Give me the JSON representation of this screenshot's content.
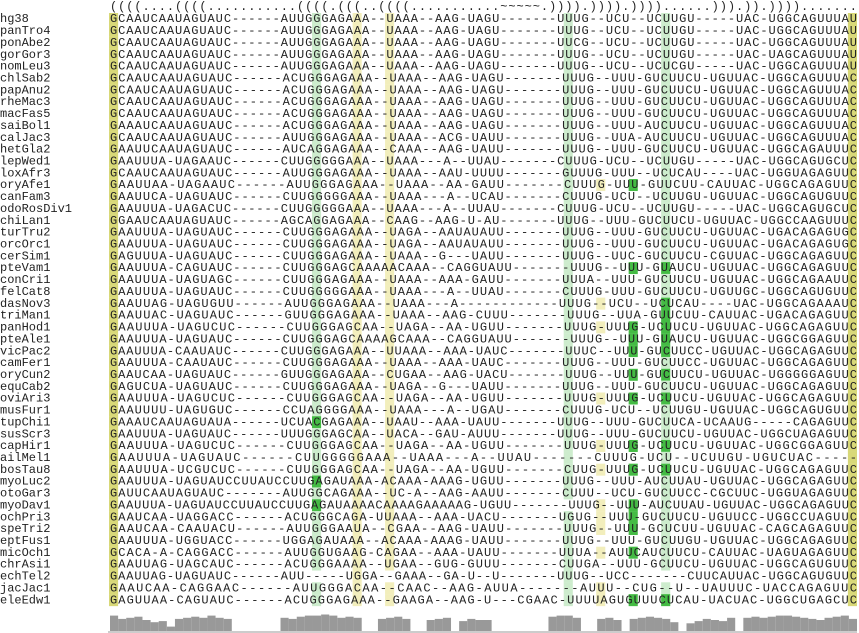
{
  "structure": "((((....((((...........((((.(((..((((...........~~~~~.)))).)))).))))......))).)).)))).......",
  "rows": [
    {
      "name": "hg38",
      "seq": "GCAAUCAAUAGUAUC------AUUGGGAGAAA--UAAA--AAG-UAGU-------UUUG--UCU--UCUUGU-----UAC-UGGCAGUUUAU"
    },
    {
      "name": "panTro4",
      "seq": "GCAAUCAAUAGUAUC------AUUGGGAGAAA--UAAA--AAG-UAGU-------UUUG--UCU--UCUUGU-----UAC-UGGCAGUUUAU"
    },
    {
      "name": "ponAbe2",
      "seq": "GCAAUCAAUAGUAUC------AUUGGGAGAAA--UAAA--AAG-UAGU-------UUCG--UCU--UCUUGU-----UAC-UGGCAGUUUAU"
    },
    {
      "name": "gorGor3",
      "seq": "GCAAUCAAUAGUAUC------AUUGGGAGAAA--UAAA--AAG-UAGU-------UUUG--UCU--UCUUGU-----UAC-UAGCAGUUUAU"
    },
    {
      "name": "nomLeu3",
      "seq": "GCAAUCAAUAGUAUC------AUUGGGAGAAA--UAAA--AAG-UAGU-------UUUG--UCU--UCUCGU-----UAC-UGGCAGUUUAU"
    },
    {
      "name": "chlSab2",
      "seq": "GCAAUCAAUAGUAUC------ACUGGGAGAAA--UAAA--AAG-UAGU-------UUUG--UUU-GUCUUCU-UGUUAC-UGGCAGUUUAC"
    },
    {
      "name": "papAnu2",
      "seq": "GCAAUCAAUAGUAUC------ACUGGGAGAAA--UAAA--AAG-UAGU-------UUUG--UUU-GUCUUCU-UGUUAC-UGGCAGUUUAC"
    },
    {
      "name": "rheMac3",
      "seq": "GCAAUCAAUAGUAUC------ACUGGGAGAAA--UAAA--AAG-UAGU-------UUUG--UUU-GUCUUCU-UGUUAC-UGGCAGUUUAC"
    },
    {
      "name": "macFas5",
      "seq": "GCAAUCAAUAGUAUC------ACUGGGAGAAA--UAAA--AAG-UAGU-------UUUG--UUU-GUCUUCU-UGUUAC-UGGCAGUUUAC"
    },
    {
      "name": "saiBol1",
      "seq": "GAAAUCAAUAGUAUC------ACUGGGAGAAA--UAAA--AAG-UAGU-------UUUG--UUU-AUCUUCU-UGUUAC-UGGCAGUUUAC"
    },
    {
      "name": "calJac3",
      "seq": "GCAAUCAAUAGUAUC------AUUGGGAGAAA--UAAA--ACG-UAUU-------UUUG--UUA-AUCUUCU-UGUUAC-UGGCAGUUUAC"
    },
    {
      "name": "hetGla2",
      "seq": "GAAUUCAAUAGUAUC------AUCAGGAGAAA--CAAA--AAG-UAUU-------UUUG--UUU-GUCUUCU-UGUUAC-UGGCAGAUUUC"
    },
    {
      "name": "lepWed1",
      "seq": "GAAUUUA-UAGAAUC------CUUGGGGGAAA--UAAA---A--UUAU-------CUUUG-UCU--UCUUGU-----UAC-UGGCAGUGCUC"
    },
    {
      "name": "loxAfr3",
      "seq": "GCAAUCAAUAGUAUC------AUUGGGAGAAA--UAAA--AAU-UUUU-------GUUUG-UUU--UCUCAU----UAC-UGGUAGAGUUC"
    },
    {
      "name": "oryAfe1",
      "seq": "GAAUUAA-UAGAAUC------AUUGGGAGAAA--UAAA--AA-GAUU-------CUUUG-UUU-GUUCUU-CAUUAC-UGGCAGAGUUC"
    },
    {
      "name": "canFam3",
      "seq": "GAAUUCA-UAGUAUC------CUUGGGGGAAA--UAAA---A--UCAU-------CUUUG-UCU--UCUUGU-UGUUAC-UGGCAGUGUUC"
    },
    {
      "name": "odoRosDiv1",
      "seq": "GAAUUUA-UAGACUC------CUUGGGGGAAA--UAAA---A--UUAU-------CUUUG-UCU--UCUUGU-----UAC-UGGCAGUGCUC"
    },
    {
      "name": "chiLan1",
      "seq": "GGAAUCAAUAGUAUC------AGCAGGAGAAA--CAAG--AAG-U-AU-------UUUG--UUU-GUCUUCU-UGUUAC-UGGCCAAGUUUC"
    },
    {
      "name": "turTru2",
      "seq": "GAAUUUA-UAGUAUC------CUUGGGAGAAA--UAGA--AAUAUAUU-------UUUG--UUU-GUCUUCU-UGUUAC-UGACAGAGUGC"
    },
    {
      "name": "orcOrc1",
      "seq": "GAAUUUA-UAGUAUC------CUUGGGAGAAA--UAGA--AAUAUAUU-------UUUG--UUU-GUCUUCU-UGUUAC-UGACAGAGUGC"
    },
    {
      "name": "cerSim1",
      "seq": "GAGUUUA-UAGUAUC------CUUGGGAGAAA--UAAA--G---UAUU-------UUUG--UUC-GUCUUCU-CGUUAC-UGGCAGAGUUC"
    },
    {
      "name": "pteVam1",
      "seq": "GAAUUUA-CAGUAUC------CUUGGGAGCAAAAACAAA--CAGGUAUU-------UUUG--UUU-GUAUCU-UGUUAC-UGGCAGAGUUC"
    },
    {
      "name": "conCri1",
      "seq": "GAAUUUA-UAGUAGC------CUUGGGAGAAA--UAAA--AAA-GAUU-------UUUA--UUU-GUCUUCU-UGUUAC-UGGCAGAAUUC"
    },
    {
      "name": "felCat8",
      "seq": "GAAUUUA-UAGUAUC------CUUGGGGGAAA--UAAA---A--UUAU-------CUUUG-UUU-GUCUUCU-UGUUGC-UGGCAGUGUUC"
    },
    {
      "name": "dasNov3",
      "seq": "GAAUUAG-UAGUGUU------AUUGGGAGAAA--UAAA---A------------UUUG--UCU--UCUCAU----UAC-UGGCAGAAAUC"
    },
    {
      "name": "triMan1",
      "seq": "GAAUUAC-UAGUAUC------GUUGGGAGAAA--UAAA--AAG-CUUU-------UUUG--UUA-GUUCUU-CAUUAC-UGACAGAGUUC"
    },
    {
      "name": "panHod1",
      "seq": "GAAUUUA-UAGUCUC------CUUGGGAGCAA--UAGA--AA-UGUU-------UUUG-UUUG-UCUUCU-UGUUAC-UGGCAGAGUUC"
    },
    {
      "name": "pteAle1",
      "seq": "GAAUUUA-UAGUAUC------CUUGGGAGCAAAAGCAAA--CAGGUAUU-------UUUG--UUU-GUAUCU-UGUUAC-UGGCGGAGUUC"
    },
    {
      "name": "vicPac2",
      "seq": "GAAUUUA-CAAUAUC------CUUGGGAGAAA--UUAAA--AAA-UAUC-------UUUC--UUU-GUCUUCC-UGUUAC-UGGCAGAGUUC"
    },
    {
      "name": "camFer1",
      "seq": "GAAUUUA-CAAUAUC------CUUGGGAGAAA--UAAA--AAA-UAUC-------UUUG--UUU-GUCUUCC-UGUUAC-UGGCAGAGUUC"
    },
    {
      "name": "oryCun2",
      "seq": "GAAUCAA-UAGUAUC------GUUGGGAGAAA--CUGAA--AAG-UACU-------UUUG--UUU-GUCUUCU-UGUUAC-UGGGGGAGUUC"
    },
    {
      "name": "equCab2",
      "seq": "GAGUCUA-UAGUAUC------CUUGGGAGAAA--UAGA--G---UAUU-------UUUG--UUU-GUCUUCU-UGUUAC-UGGCAGAGUUC"
    },
    {
      "name": "oviAri3",
      "seq": "GAAUUUA-UAGUCUC------CUUGGGAGCAA--UAGA--AA-UGUU-------UUUG-UUUG-UCUUCU-UGUUAC-UGGCAGAGUUC"
    },
    {
      "name": "musFur1",
      "seq": "GAAUUUU-UAGUGUC------CCUAGGGGAAA--UAAA---A--UGAU-------CUUUG-UCU--UCUUGU-UGUUAC-UGGCAGUGUUC"
    },
    {
      "name": "tupChi1",
      "seq": "GAAAUCAAUAGUAUA------UCUACGAGAAA--UAAU--AAA-UAUU-------UUUG--UUU-GUCUUCA-UCAAUG-----CAGAGUUC"
    },
    {
      "name": "susScr3",
      "seq": "GAAUUUA-UAGUAUC------UUUGGGAGCAA--UACA--GAU-AUUU-------UUUG--UUU-GUCUUCU-UGUUAC-UGGCUAGAGUUC"
    },
    {
      "name": "capHir1",
      "seq": "GAAUUUA-UAGUCUC------CUUGGGAGCAA--UAGA--AA-UGUU-------UUUG-UUUG-UCUUCU-UGUUAC-UGGCGGAGUUC"
    },
    {
      "name": "ailMel1",
      "seq": "GAAUUUA-UAGUAUC------CUUGGGGGAAA--UAAA---A--UUAU-------CUUUG-UCU--UCUUGU-UGUCUAC-----"
    },
    {
      "name": "bosTau8",
      "seq": "GAAUUUA-UCGUCUC------CUUGGGAGCAA--UAGA--AA-UGUU-------CUUG-UUUG-UCUUCU-UGUUAC-UGGCAGAGUUC"
    },
    {
      "name": "myoLuc2",
      "seq": "GAAUUUA-UAGUAUCCUUAUCCUUGAGAUAAA-ACAAA-AAAG-UGUU-------UUUG--UUU-AUCUUAU-UGUUAC-UGGCAGAGUUC"
    },
    {
      "name": "otoGar3",
      "seq": "GAUUCAAUAGUAUC-------AUUGGCAGAAA--UC-A--AAG-AAUU-------CUUU--UCU-GUCUUCC-CGCUUC-UGGUAGAGUUC"
    },
    {
      "name": "myoDav1",
      "seq": "GAAUUUA-UAGUAUCCUUAUCCUUGAGAUAAAACAAAAGAAAAAG-UGUU-------UUUG--UUU-AUCUUAU-UGUUAC-UGGCAGAGUUC"
    },
    {
      "name": "ochPri3",
      "seq": "GAAUCAA-UAGGACC------ACUGGGCAGA-UUAAA--AAA-UACU-------UGUG--UUU-GUCUUCU-UGUUCC-UGGCCUAGUUC"
    },
    {
      "name": "speTri2",
      "seq": "GAAUCAA-CAAUACU------AUUGGGAAUA--CGAA--AAG-UAUU-------UUUG--UUU-GCUCUU-UGUUAC-CAGCAGAGUUC"
    },
    {
      "name": "eptFus1",
      "seq": "GAAUUUA-UGGUACC------UGGAGAUAAA--ACAAA-AAAG-UAUU-------UUUG--UUU-GUCUUGU-UGUUAC-UGGCAGAGUUC"
    },
    {
      "name": "micOch1",
      "seq": "GCACA-A-CAGGACC------AUUGGUGAAG-CAGAA--AAA-UAUU-------UUUA--AUUCAUCUUCU-CAUUAC-UAGUAGAGUUC"
    },
    {
      "name": "chrAsi1",
      "seq": "GAAUUAG-UAGCAUC------ACUGGGAAAA--UGAA--GUG-GUUU-------CUUGA--UUU-GCUUCU-UGUUAC-UGGCAGUGUUC"
    },
    {
      "name": "echTel2",
      "seq": "GAAUUAG-UAGUAUC------AUU-----UGGA--GAAA--GA-U--U-------UUUG--UCC-------CUUCAUUAC-UGGCAGUGUUC"
    },
    {
      "name": "jacJac1",
      "seq": "GAAUCAA-CAGGAAC------AUUGGGACAA--CAAC--AAG-AUUA-------AUUU--CUG--U--UAUUUC-UACCAGAGUUC"
    },
    {
      "name": "eleEdw1",
      "seq": "GAGUUAA-CAGUAUC------ACUGGGAGAAA--GAAGA--AAG-U---CGAAC-UUUUAGUGUUUCUCAU-UACUAC-UGGCUGAGCUC"
    }
  ],
  "conservation": [
    70,
    55,
    60,
    65,
    50,
    40,
    45,
    20,
    55,
    60,
    65,
    60,
    70,
    60,
    55,
    0,
    0,
    0,
    0,
    0,
    0,
    60,
    55,
    65,
    70,
    70,
    75,
    70,
    60,
    65,
    60,
    0,
    0,
    55,
    60,
    65,
    55,
    0,
    0,
    50,
    55,
    60,
    0,
    45,
    55,
    50,
    50,
    0,
    0,
    0,
    0,
    0,
    0,
    0,
    65,
    70,
    70,
    60,
    0,
    0,
    55,
    60,
    50,
    0,
    55,
    60,
    65,
    60,
    55,
    40,
    0,
    35,
    45,
    55,
    50,
    45,
    60,
    0,
    60,
    65,
    60,
    65,
    70,
    70,
    65,
    60,
    55,
    50,
    60,
    65,
    70,
    55
  ]
}
